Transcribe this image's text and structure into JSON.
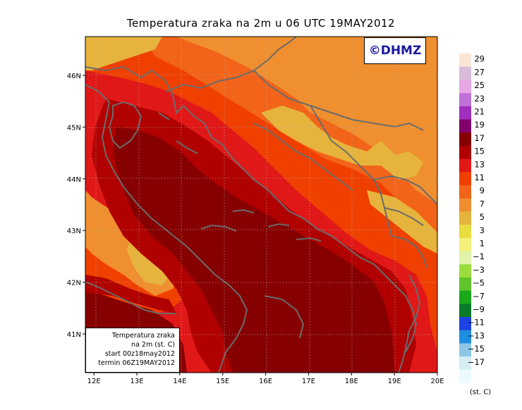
{
  "title": "Temperatura zraka na 2m u 06 UTC 19MAY2012",
  "logo": "©DHMZ",
  "info": {
    "line1": "Temperatura zraka",
    "line2": "na 2m (st. C)",
    "line3": "start 00z18may2012",
    "line4": "termin 06Z19MAY2012"
  },
  "axes": {
    "lon_labels": [
      "12E",
      "13E",
      "14E",
      "15E",
      "16E",
      "17E",
      "18E",
      "19E",
      "20E"
    ],
    "lat_labels": [
      "46N",
      "45N",
      "44N",
      "43N",
      "42N",
      "41N"
    ]
  },
  "legend": {
    "unit": "(st. C)",
    "labels": [
      "29",
      "27",
      "25",
      "23",
      "21",
      "19",
      "17",
      "15",
      "13",
      "11",
      "9",
      "7",
      "5",
      "3",
      "1",
      "−1",
      "−3",
      "−5",
      "−7",
      "−9",
      "−11",
      "−13",
      "−15",
      "−17"
    ],
    "colors": [
      "#fbe6d5",
      "#d8bcd8",
      "#e7a7e7",
      "#c071d7",
      "#a02fc0",
      "#84006d",
      "#860000",
      "#b00000",
      "#e01818",
      "#f04000",
      "#f26419",
      "#ef8f2f",
      "#e6b43c",
      "#e9dc3f",
      "#f3f07a",
      "#e1f2a9",
      "#9bdd3c",
      "#5fc52a",
      "#1aa81a",
      "#0a7a2a",
      "#1c42e6",
      "#1e8ee0",
      "#8ec7e6",
      "#d5eef4",
      "#ecfaff"
    ]
  },
  "map": {
    "lon_range": [
      11.8,
      20.0
    ],
    "lat_range": [
      40.25,
      46.75
    ],
    "colors": {
      "t5": "#e6b43c",
      "t7": "#ef8f2f",
      "t9": "#f26419",
      "t11": "#f04000",
      "t13": "#e01818",
      "t15": "#b00000",
      "t17": "#860000",
      "coast": "#6b6b6b"
    }
  }
}
